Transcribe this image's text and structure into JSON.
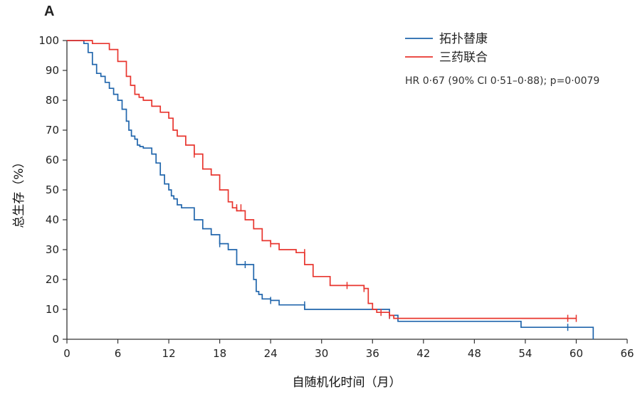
{
  "chart_data": {
    "type": "line",
    "panel_label": "A",
    "xlabel": "自随机化时间（月）",
    "ylabel": "总生存（%）",
    "xlim": [
      0,
      66
    ],
    "ylim": [
      0,
      100
    ],
    "xticks": [
      0,
      6,
      12,
      18,
      24,
      30,
      36,
      42,
      48,
      54,
      60,
      66
    ],
    "yticks": [
      0,
      10,
      20,
      30,
      40,
      50,
      60,
      70,
      80,
      90,
      100
    ],
    "grid": false,
    "legend_position": "top-right",
    "annotation": "HR 0·67 (90% CI 0·51–0·88); p=0·0079",
    "series": [
      {
        "name": "拓扑替康",
        "color": "#2166ac",
        "x": [
          0,
          2,
          2.5,
          3,
          3.5,
          4,
          4.5,
          5,
          5.5,
          6,
          6.5,
          7,
          7.3,
          7.6,
          8,
          8.3,
          8.6,
          9,
          10,
          10.5,
          11,
          11.5,
          12,
          12.3,
          12.6,
          13,
          13.5,
          14,
          15,
          16,
          17,
          18,
          19,
          20,
          21,
          22,
          22.3,
          22.6,
          23,
          24,
          25,
          28,
          36,
          37,
          38,
          39,
          45,
          53.5,
          59,
          60,
          62
        ],
        "y": [
          100,
          99,
          96,
          92,
          89,
          88,
          86,
          84,
          82,
          80,
          77,
          73,
          70,
          68,
          67,
          65,
          64.5,
          64,
          62,
          59,
          55,
          52,
          50,
          48,
          47,
          45,
          44,
          44,
          40,
          37,
          35,
          32,
          30,
          25,
          25,
          20,
          16,
          15,
          13.5,
          13,
          11.5,
          10,
          10,
          10,
          8,
          6,
          6,
          4,
          4,
          4,
          0
        ],
        "censor_x": [
          18,
          21,
          24,
          28,
          38,
          59
        ],
        "censor_y": [
          32,
          25,
          13,
          11.5,
          8,
          4
        ]
      },
      {
        "name": "三药联合",
        "color": "#e8352e",
        "x": [
          0,
          3,
          5,
          6,
          7,
          7.5,
          8,
          8.5,
          9,
          10,
          11,
          12,
          12.5,
          13,
          14,
          15,
          16,
          17,
          18,
          19,
          19.5,
          20,
          21,
          22,
          23,
          24,
          25,
          27,
          28,
          29,
          31,
          35,
          35.5,
          36,
          36.5,
          38,
          38.5,
          39,
          45,
          50,
          55,
          60
        ],
        "y": [
          100,
          99,
          97,
          93,
          88,
          85,
          82,
          81,
          80,
          78,
          76,
          74,
          70,
          68,
          65,
          62,
          57,
          55,
          50,
          46,
          44,
          43,
          40,
          37,
          33,
          32,
          30,
          29,
          25,
          21,
          18,
          17,
          12,
          10,
          9,
          8,
          7,
          7,
          7,
          7,
          7,
          7
        ],
        "censor_x": [
          15,
          20,
          20.5,
          24,
          28,
          33,
          35,
          37,
          38,
          59,
          60
        ],
        "censor_y": [
          62,
          44,
          44,
          32,
          29,
          18,
          17,
          9,
          8,
          7,
          7
        ]
      }
    ]
  }
}
